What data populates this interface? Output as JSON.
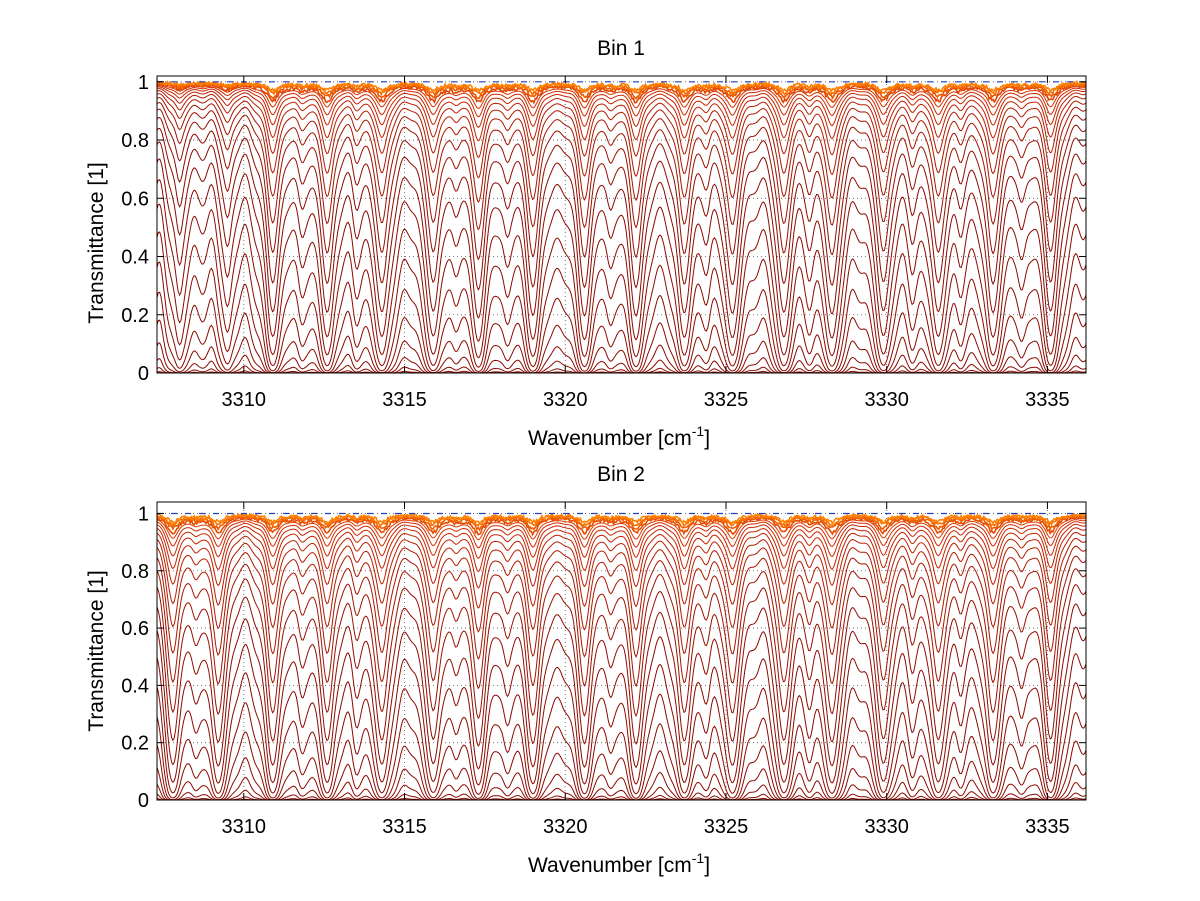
{
  "chart_data": [
    {
      "type": "line",
      "title": "Bin 1",
      "xlabel": "Wavenumber [cm",
      "xlabel_sup": "-1",
      "xlabel_end": "]",
      "ylabel": "Transmittance [1]",
      "xlim": [
        3307.3,
        3336.2
      ],
      "ylim": [
        0,
        1.02
      ],
      "xticks": [
        "3310",
        "3315",
        "3320",
        "3325",
        "3330",
        "3335"
      ],
      "yticks": [
        "0",
        "0.2",
        "0.4",
        "0.6",
        "0.8",
        "1"
      ],
      "grid": "dotted",
      "line_count": 30,
      "deep_line_centers": [
        3310.9,
        3312.6,
        3314.3,
        3315.9,
        3317.3,
        3319.0,
        3320.6,
        3322.2,
        3323.7,
        3325.2,
        3326.8,
        3328.3,
        3329.9,
        3331.6,
        3333.3,
        3335.1
      ],
      "weak_line_centers": [
        3308.0,
        3309.5,
        3311.8,
        3313.5,
        3316.6,
        3318.2,
        3321.4,
        3324.4,
        3327.6,
        3330.8,
        3332.3,
        3334.2
      ],
      "colors": {
        "deep": "#8b0a00",
        "mid": "#d42a00",
        "shallow": "#ff8000",
        "reference": "#2040c0"
      }
    },
    {
      "type": "line",
      "title": "Bin 2",
      "xlabel": "Wavenumber [cm",
      "xlabel_sup": "-1",
      "xlabel_end": "]",
      "ylabel": "Transmittance [1]",
      "xlim": [
        3307.3,
        3336.2
      ],
      "ylim": [
        0,
        1.04
      ],
      "xticks": [
        "3310",
        "3315",
        "3320",
        "3325",
        "3330",
        "3335"
      ],
      "yticks": [
        "0",
        "0.2",
        "0.4",
        "0.6",
        "0.8",
        "1"
      ],
      "grid": "dotted",
      "line_count": 34,
      "deep_line_centers": [
        3307.8,
        3309.2,
        3310.9,
        3312.6,
        3314.3,
        3315.9,
        3317.3,
        3319.0,
        3320.6,
        3322.2,
        3323.7,
        3325.2,
        3326.8,
        3328.3,
        3329.9,
        3331.6,
        3333.3,
        3335.1
      ],
      "weak_line_centers": [
        3308.5,
        3311.8,
        3313.5,
        3316.6,
        3318.2,
        3321.4,
        3324.4,
        3327.6,
        3330.8,
        3332.3,
        3334.2
      ],
      "colors": {
        "deep": "#8b0a00",
        "mid": "#d42a00",
        "shallow": "#ff8000",
        "reference": "#2040c0"
      }
    }
  ]
}
